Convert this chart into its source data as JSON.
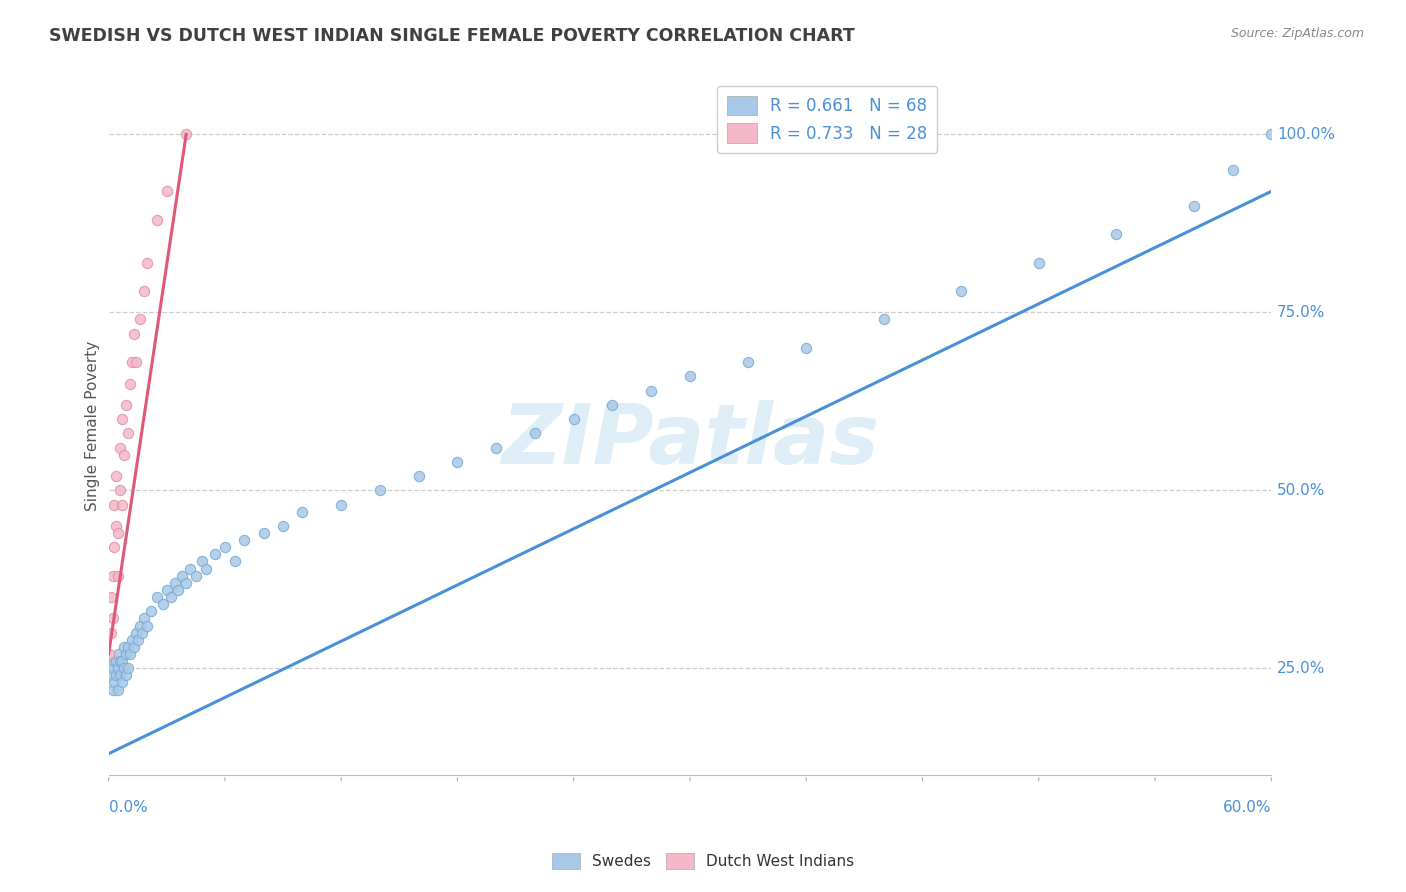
{
  "title": "SWEDISH VS DUTCH WEST INDIAN SINGLE FEMALE POVERTY CORRELATION CHART",
  "source": "Source: ZipAtlas.com",
  "ylabel": "Single Female Poverty",
  "blue_r": 0.661,
  "blue_n": 68,
  "pink_r": 0.733,
  "pink_n": 28,
  "blue_color": "#a8c8e8",
  "pink_color": "#f4b8c8",
  "blue_line_color": "#4a90d9",
  "pink_line_color": "#e05878",
  "legend_blue_label": "R = 0.661   N = 68",
  "legend_pink_label": "R = 0.733   N = 28",
  "swedes_label": "Swedes",
  "dutch_label": "Dutch West Indians",
  "watermark": "ZIPatlas",
  "background_color": "#ffffff",
  "grid_color": "#c8c8c8",
  "title_color": "#404040",
  "axis_label_color": "#4a90d9",
  "blue_scatter_x": [
    0.001,
    0.002,
    0.002,
    0.003,
    0.003,
    0.004,
    0.004,
    0.005,
    0.005,
    0.005,
    0.006,
    0.006,
    0.007,
    0.007,
    0.008,
    0.008,
    0.009,
    0.009,
    0.01,
    0.01,
    0.011,
    0.012,
    0.013,
    0.014,
    0.015,
    0.016,
    0.017,
    0.018,
    0.02,
    0.022,
    0.025,
    0.028,
    0.03,
    0.032,
    0.034,
    0.036,
    0.038,
    0.04,
    0.042,
    0.045,
    0.048,
    0.05,
    0.055,
    0.06,
    0.065,
    0.07,
    0.08,
    0.09,
    0.1,
    0.12,
    0.14,
    0.16,
    0.18,
    0.2,
    0.22,
    0.24,
    0.26,
    0.28,
    0.3,
    0.33,
    0.36,
    0.4,
    0.44,
    0.48,
    0.52,
    0.56,
    0.58,
    0.6
  ],
  "blue_scatter_y": [
    0.24,
    0.22,
    0.25,
    0.23,
    0.26,
    0.24,
    0.26,
    0.22,
    0.25,
    0.27,
    0.24,
    0.26,
    0.23,
    0.26,
    0.25,
    0.28,
    0.24,
    0.27,
    0.25,
    0.28,
    0.27,
    0.29,
    0.28,
    0.3,
    0.29,
    0.31,
    0.3,
    0.32,
    0.31,
    0.33,
    0.35,
    0.34,
    0.36,
    0.35,
    0.37,
    0.36,
    0.38,
    0.37,
    0.39,
    0.38,
    0.4,
    0.39,
    0.41,
    0.42,
    0.4,
    0.43,
    0.44,
    0.45,
    0.47,
    0.48,
    0.5,
    0.52,
    0.54,
    0.56,
    0.58,
    0.6,
    0.62,
    0.64,
    0.66,
    0.68,
    0.7,
    0.74,
    0.78,
    0.82,
    0.86,
    0.9,
    0.95,
    1.0
  ],
  "pink_scatter_x": [
    0.0,
    0.001,
    0.001,
    0.002,
    0.002,
    0.003,
    0.003,
    0.004,
    0.004,
    0.005,
    0.005,
    0.006,
    0.006,
    0.007,
    0.007,
    0.008,
    0.009,
    0.01,
    0.011,
    0.012,
    0.013,
    0.014,
    0.016,
    0.018,
    0.02,
    0.025,
    0.03,
    0.04
  ],
  "pink_scatter_y": [
    0.27,
    0.3,
    0.35,
    0.32,
    0.38,
    0.42,
    0.48,
    0.45,
    0.52,
    0.38,
    0.44,
    0.5,
    0.56,
    0.6,
    0.48,
    0.55,
    0.62,
    0.58,
    0.65,
    0.68,
    0.72,
    0.68,
    0.74,
    0.78,
    0.82,
    0.88,
    0.92,
    1.0
  ],
  "blue_line_x": [
    0.0,
    0.6
  ],
  "blue_line_y": [
    0.13,
    0.92
  ],
  "pink_line_x": [
    0.0,
    0.04
  ],
  "pink_line_y": [
    0.27,
    1.0
  ],
  "xlim": [
    0.0,
    0.6
  ],
  "ylim": [
    0.1,
    1.08
  ]
}
